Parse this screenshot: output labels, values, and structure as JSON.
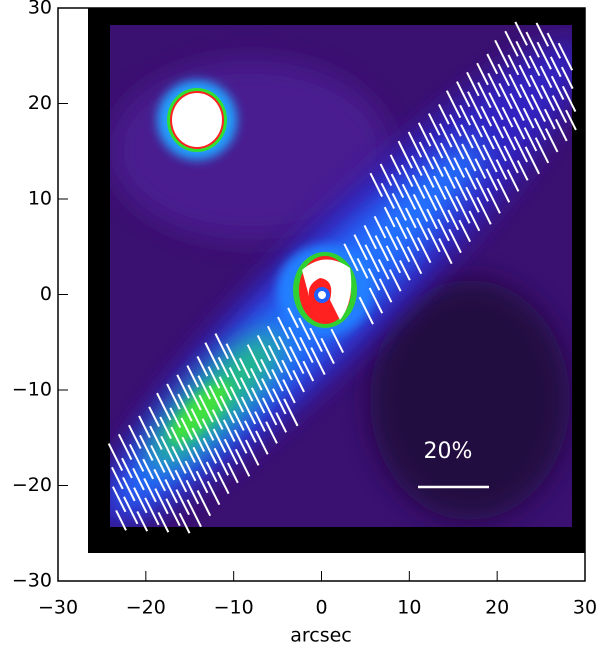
{
  "chart_data": {
    "type": "image",
    "xlabel": "arcsec",
    "xlim": [
      -30,
      30
    ],
    "ylim": [
      -30,
      30
    ],
    "xticks": [
      {
        "value": -30,
        "label": "−30"
      },
      {
        "value": -20,
        "label": "−20"
      },
      {
        "value": -10,
        "label": "−10"
      },
      0,
      10,
      20,
      30
    ],
    "yticks": [
      {
        "value": -30,
        "label": "−30"
      },
      {
        "value": -20,
        "label": "−20"
      },
      {
        "value": -10,
        "label": "−10"
      },
      0,
      10,
      20,
      30
    ],
    "annotation": "20%"
  }
}
